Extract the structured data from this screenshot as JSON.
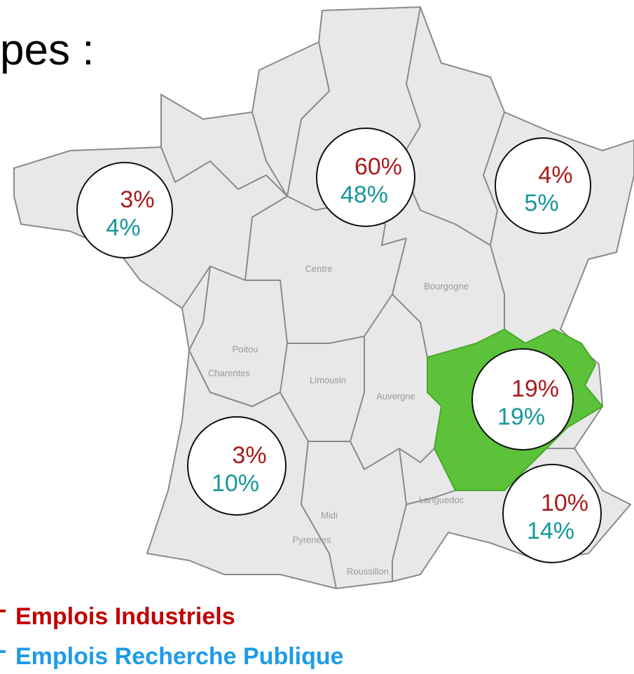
{
  "title": "pes :",
  "regions": [
    "Centre",
    "Bourgogne",
    "Poitou",
    "Charentes",
    "Limousin",
    "Auvergne",
    "Languedoc",
    "Midi",
    "Pyrenees",
    "Roussillon"
  ],
  "circles": [
    {
      "industry": "3%",
      "research": "4%"
    },
    {
      "industry": "60%",
      "research": "48%"
    },
    {
      "industry": "4%",
      "research": "5%"
    },
    {
      "industry": "19%",
      "research": "19%"
    },
    {
      "industry": "3%",
      "research": "10%"
    },
    {
      "industry": "10%",
      "research": "14%"
    }
  ],
  "legend": [
    "Emplois Industriels",
    "Emplois Recherche Publique"
  ]
}
